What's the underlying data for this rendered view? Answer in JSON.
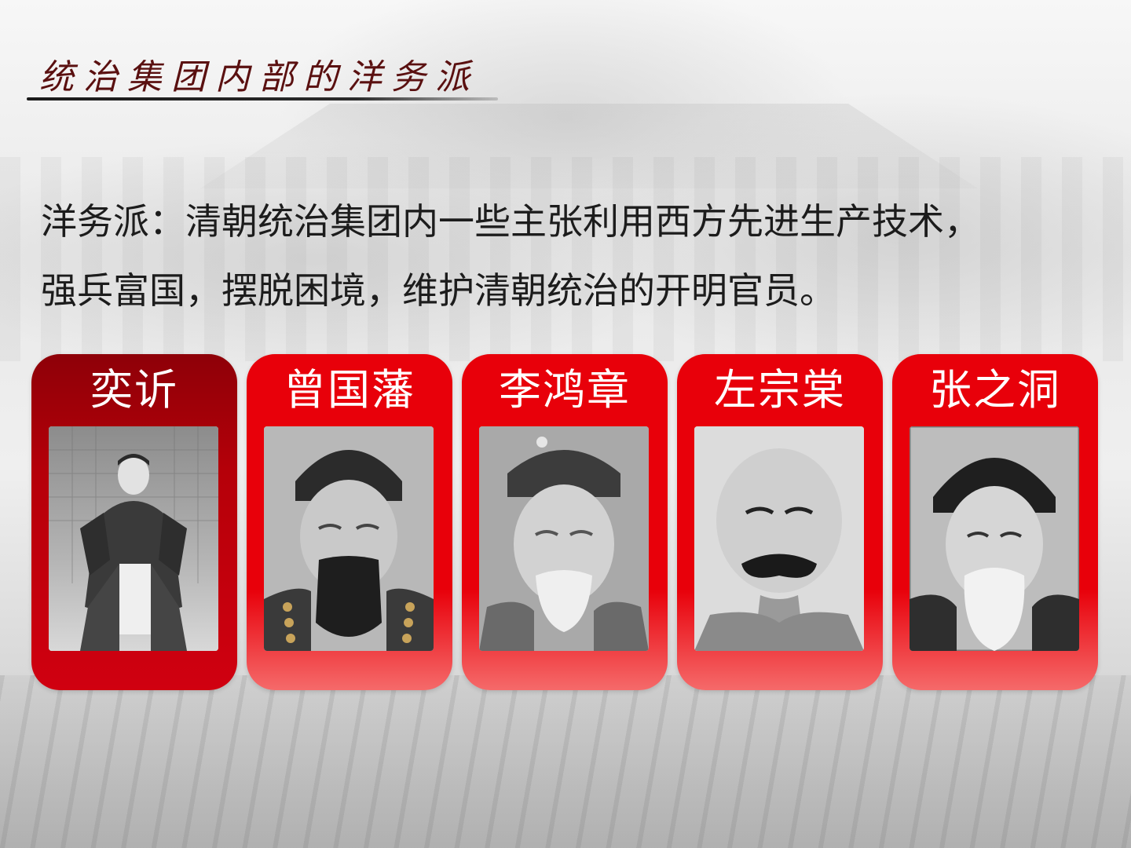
{
  "slide": {
    "title": "统治集团内部的洋务派",
    "definition_lines": [
      "洋务派：清朝统治集团内一些主张利用西方先进生产技术，",
      "强兵富国，摆脱困境，维护清朝统治的开明官员。"
    ]
  },
  "cards": [
    {
      "name": "奕䜣",
      "style": "dark"
    },
    {
      "name": "曾国藩",
      "style": "red"
    },
    {
      "name": "李鸿章",
      "style": "red"
    },
    {
      "name": "左宗棠",
      "style": "red"
    },
    {
      "name": "张之洞",
      "style": "red"
    }
  ],
  "colors": {
    "card_red": "#e8000a",
    "card_dark_red": "#8e0008",
    "title_color": "#5a1010",
    "text_color": "#1c1c1c"
  }
}
